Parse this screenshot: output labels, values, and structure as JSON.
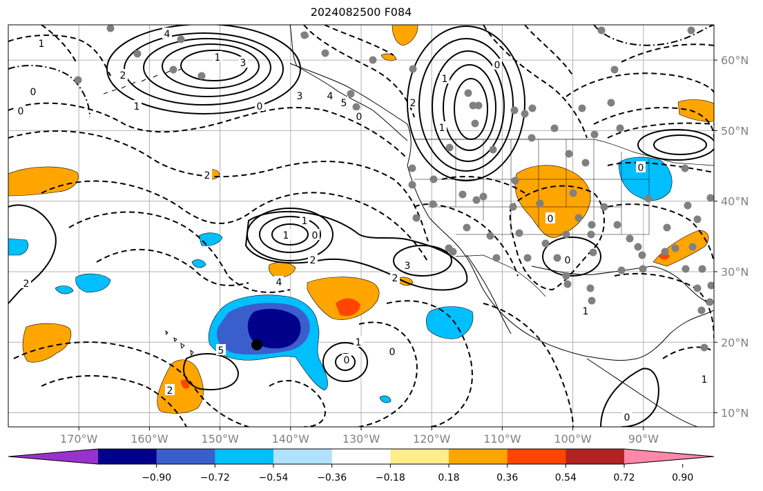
{
  "title": "2024082500 F084",
  "map": {
    "lon_range": [
      -180,
      -80
    ],
    "lat_range": [
      8,
      65
    ],
    "lon_ticks": [
      "170°W",
      "160°W",
      "150°W",
      "140°W",
      "130°W",
      "120°W",
      "110°W",
      "100°W",
      "90°W"
    ],
    "lat_ticks": [
      "60°N",
      "50°N",
      "40°N",
      "30°N",
      "20°N",
      "10°N"
    ],
    "grid": true
  },
  "colorbar": {
    "labels": [
      "−0.90",
      "−0.72",
      "−0.54",
      "−0.36",
      "−0.18",
      "0.18",
      "0.36",
      "0.54",
      "0.72",
      "0.90"
    ],
    "colors": [
      "#9932cc",
      "#00008b",
      "#3a5fcd",
      "#00bfff",
      "#b0e2ff",
      "#ffffff",
      "#ffec8b",
      "#ffa500",
      "#ff4500",
      "#b22222",
      "#ff88aa"
    ]
  },
  "contour_labels": [
    "4",
    "3",
    "2",
    "1",
    "0",
    "1",
    "2",
    "1",
    "0",
    "1",
    "2",
    "3",
    "4",
    "5",
    "0",
    "2",
    "1",
    "0",
    "1",
    "2",
    "3",
    "4",
    "5",
    "0",
    "1",
    "0",
    "2",
    "0",
    "1",
    "0",
    "0",
    "0",
    "1",
    "0",
    "1",
    "2",
    "0"
  ]
}
